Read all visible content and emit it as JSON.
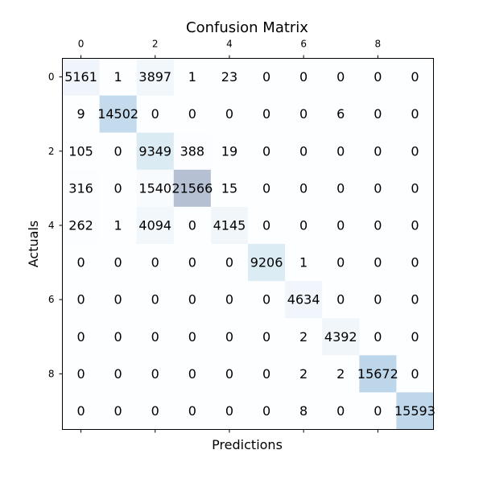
{
  "chart_data": {
    "type": "heatmap",
    "title": "Confusion Matrix",
    "xlabel": "Predictions",
    "ylabel": "Actuals",
    "x_tick_labels": [
      "0",
      "2",
      "4",
      "6",
      "8"
    ],
    "x_tick_indices": [
      0,
      2,
      4,
      6,
      8
    ],
    "x_ticks_position": "top",
    "y_tick_labels": [
      "0",
      "2",
      "4",
      "6",
      "8"
    ],
    "y_tick_indices": [
      0,
      2,
      4,
      6,
      8
    ],
    "colormap": "Blues",
    "alpha": 0.3,
    "matrix": [
      [
        5161,
        1,
        3897,
        1,
        23,
        0,
        0,
        0,
        0,
        0
      ],
      [
        9,
        14502,
        0,
        0,
        0,
        0,
        0,
        6,
        0,
        0
      ],
      [
        105,
        0,
        9349,
        388,
        19,
        0,
        0,
        0,
        0,
        0
      ],
      [
        316,
        0,
        1540,
        21566,
        15,
        0,
        0,
        0,
        0,
        0
      ],
      [
        262,
        1,
        4094,
        0,
        4145,
        0,
        0,
        0,
        0,
        0
      ],
      [
        0,
        0,
        0,
        0,
        0,
        9206,
        1,
        0,
        0,
        0
      ],
      [
        0,
        0,
        0,
        0,
        0,
        0,
        4634,
        0,
        0,
        0
      ],
      [
        0,
        0,
        0,
        0,
        0,
        0,
        2,
        4392,
        0,
        0
      ],
      [
        0,
        0,
        0,
        0,
        0,
        0,
        2,
        2,
        15672,
        0
      ],
      [
        0,
        0,
        0,
        0,
        0,
        0,
        8,
        0,
        0,
        15593
      ]
    ]
  }
}
